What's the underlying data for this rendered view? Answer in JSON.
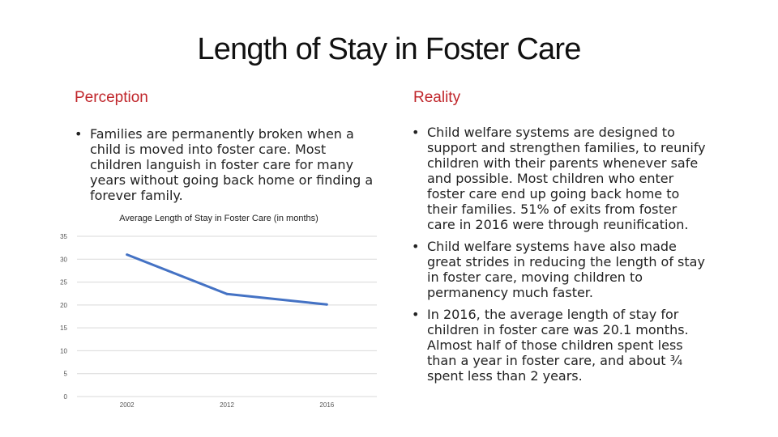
{
  "title": "Length of Stay in Foster Care",
  "perception": {
    "heading": "Perception",
    "bullets": [
      "Families are permanently broken when a child is moved into foster care. Most children languish in foster care for many years without going back home or finding a forever family."
    ]
  },
  "reality": {
    "heading": "Reality",
    "bullets": [
      "Child welfare systems are designed to support and strengthen families, to reunify children with their parents whenever safe and possible. Most children who enter foster care end up going back home to their families. 51% of exits from foster care in 2016 were through reunification.",
      "Child welfare systems have also made great strides in reducing the length of stay in foster care, moving children to permanency much faster.",
      "In 2016, the average length of stay for children in foster care was 20.1 months. Almost half of those children spent less than a year in foster care, and about ¾ spent less than 2 years."
    ]
  },
  "chart_data": {
    "type": "line",
    "title": "Average Length of Stay in Foster Care (in months)",
    "categories": [
      "2002",
      "2012",
      "2016"
    ],
    "series": [
      {
        "values": [
          31,
          22.4,
          20.1
        ],
        "color": "#4472c4"
      }
    ],
    "ylim": [
      0,
      35
    ],
    "yticks": [
      0,
      5,
      10,
      15,
      20,
      25,
      30,
      35
    ],
    "grid": true
  }
}
